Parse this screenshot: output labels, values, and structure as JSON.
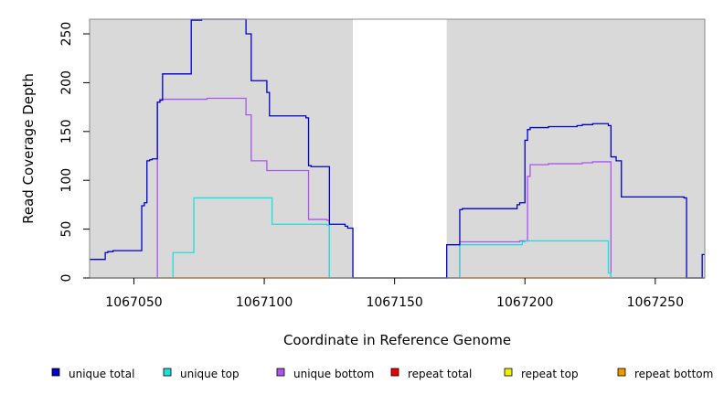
{
  "chart_data": {
    "type": "line",
    "title": "",
    "xlabel": "Coordinate in Reference Genome",
    "ylabel": "Read Coverage Depth",
    "xlim": [
      1067033,
      1067269
    ],
    "ylim": [
      0,
      265
    ],
    "xticks": [
      1067050,
      1067100,
      1067150,
      1067200,
      1067250
    ],
    "xtick_labels": [
      "1067050",
      "1067100",
      "1067150",
      "1067200",
      "1067250"
    ],
    "yticks": [
      0,
      50,
      100,
      150,
      200,
      250
    ],
    "ytick_labels": [
      "0",
      "50",
      "100",
      "150",
      "200",
      "250"
    ],
    "grid": false,
    "legend_position": "bottom",
    "background_regions": [
      {
        "x0": 1067033,
        "x1": 1067134,
        "color": "#d9d9d9"
      },
      {
        "x0": 1067170,
        "x1": 1067269,
        "color": "#d9d9d9"
      }
    ],
    "series": [
      {
        "name": "unique total",
        "color": "#0000cc",
        "step": true,
        "points": [
          [
            1067033,
            19
          ],
          [
            1067039,
            26
          ],
          [
            1067040,
            27
          ],
          [
            1067042,
            28
          ],
          [
            1067053,
            74
          ],
          [
            1067054,
            77
          ],
          [
            1067055,
            120
          ],
          [
            1067056,
            121
          ],
          [
            1067057,
            122
          ],
          [
            1067059,
            180
          ],
          [
            1067060,
            182
          ],
          [
            1067061,
            209
          ],
          [
            1067065,
            209
          ],
          [
            1067072,
            264
          ],
          [
            1067076,
            265
          ],
          [
            1067093,
            250
          ],
          [
            1067095,
            202
          ],
          [
            1067101,
            190
          ],
          [
            1067102,
            166
          ],
          [
            1067116,
            164
          ],
          [
            1067117,
            115
          ],
          [
            1067118,
            114
          ],
          [
            1067119,
            114
          ],
          [
            1067125,
            55
          ],
          [
            1067131,
            53
          ],
          [
            1067132,
            51
          ],
          [
            1067134,
            0
          ],
          [
            1067170,
            34
          ],
          [
            1067175,
            70
          ],
          [
            1067176,
            71
          ],
          [
            1067197,
            75
          ],
          [
            1067198,
            77
          ],
          [
            1067200,
            141
          ],
          [
            1067201,
            152
          ],
          [
            1067202,
            154
          ],
          [
            1067209,
            155
          ],
          [
            1067220,
            156
          ],
          [
            1067222,
            157
          ],
          [
            1067226,
            158
          ],
          [
            1067232,
            156
          ],
          [
            1067233,
            124
          ],
          [
            1067235,
            120
          ],
          [
            1067237,
            83
          ],
          [
            1067261,
            82
          ],
          [
            1067262,
            0
          ],
          [
            1067268,
            24
          ],
          [
            1067269,
            24
          ]
        ]
      },
      {
        "name": "unique top",
        "color": "#22dddd",
        "step": true,
        "points": [
          [
            1067033,
            0
          ],
          [
            1067065,
            26
          ],
          [
            1067073,
            82
          ],
          [
            1067103,
            55
          ],
          [
            1067124,
            54
          ],
          [
            1067125,
            0
          ],
          [
            1067175,
            34
          ],
          [
            1067199,
            37
          ],
          [
            1067200,
            38
          ],
          [
            1067232,
            5
          ],
          [
            1067233,
            0
          ],
          [
            1067269,
            0
          ]
        ]
      },
      {
        "name": "unique bottom",
        "color": "#aa55ee",
        "step": true,
        "points": [
          [
            1067033,
            0
          ],
          [
            1067059,
            180
          ],
          [
            1067060,
            183
          ],
          [
            1067078,
            184
          ],
          [
            1067093,
            167
          ],
          [
            1067095,
            120
          ],
          [
            1067101,
            110
          ],
          [
            1067117,
            60
          ],
          [
            1067124,
            59
          ],
          [
            1067125,
            0
          ],
          [
            1067175,
            37
          ],
          [
            1067198,
            38
          ],
          [
            1067201,
            104
          ],
          [
            1067202,
            116
          ],
          [
            1067209,
            117
          ],
          [
            1067222,
            118
          ],
          [
            1067226,
            119
          ],
          [
            1067233,
            0
          ],
          [
            1067269,
            0
          ]
        ]
      },
      {
        "name": "repeat total",
        "color": "#ee0000",
        "step": true,
        "points": [
          [
            1067033,
            0
          ],
          [
            1067269,
            0
          ]
        ]
      },
      {
        "name": "repeat top",
        "color": "#eeee00",
        "step": true,
        "points": [
          [
            1067033,
            0
          ],
          [
            1067269,
            0
          ]
        ]
      },
      {
        "name": "repeat bottom",
        "color": "#ee9900",
        "step": true,
        "points": [
          [
            1067033,
            0
          ],
          [
            1067269,
            0
          ]
        ]
      }
    ]
  },
  "legend": {
    "items": [
      {
        "label": "unique total",
        "color": "#0000cc"
      },
      {
        "label": "unique top",
        "color": "#22dddd"
      },
      {
        "label": "unique bottom",
        "color": "#aa55ee"
      },
      {
        "label": "repeat total",
        "color": "#ee0000"
      },
      {
        "label": "repeat top",
        "color": "#eeee00"
      },
      {
        "label": "repeat bottom",
        "color": "#ee9900"
      }
    ]
  }
}
